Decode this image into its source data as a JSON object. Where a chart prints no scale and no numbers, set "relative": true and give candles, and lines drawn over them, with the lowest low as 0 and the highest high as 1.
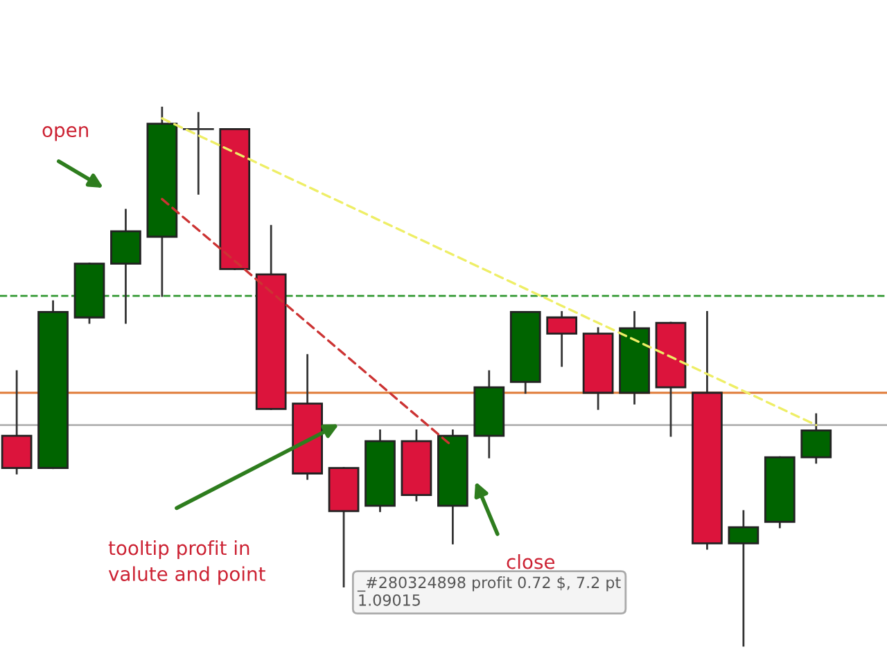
{
  "chart_data": {
    "type": "candlestick",
    "relative": true,
    "categories": [
      null,
      null,
      null,
      null,
      null,
      null,
      null,
      null,
      null,
      null,
      null,
      null,
      null,
      null,
      null,
      null,
      null,
      null,
      null,
      null,
      null,
      null,
      null
    ],
    "ohlc": [
      [
        0.39,
        0.51,
        0.32,
        0.33
      ],
      [
        0.33,
        0.64,
        0.33,
        0.62
      ],
      [
        0.61,
        0.71,
        0.6,
        0.71
      ],
      [
        0.71,
        0.81,
        0.6,
        0.77
      ],
      [
        0.76,
        1.0,
        0.65,
        0.97
      ],
      [
        0.96,
        0.99,
        0.84,
        0.96
      ],
      [
        0.96,
        0.96,
        0.7,
        0.7
      ],
      [
        0.69,
        0.78,
        0.44,
        0.44
      ],
      [
        0.45,
        0.54,
        0.31,
        0.32
      ],
      [
        0.33,
        0.33,
        0.11,
        0.25
      ],
      [
        0.26,
        0.4,
        0.25,
        0.38
      ],
      [
        0.38,
        0.4,
        0.27,
        0.28
      ],
      [
        0.26,
        0.4,
        0.19,
        0.39
      ],
      [
        0.39,
        0.51,
        0.35,
        0.48
      ],
      [
        0.49,
        0.62,
        0.47,
        0.62
      ],
      [
        0.61,
        0.62,
        0.52,
        0.58
      ],
      [
        0.58,
        0.59,
        0.44,
        0.47
      ],
      [
        0.47,
        0.62,
        0.45,
        0.59
      ],
      [
        0.6,
        0.6,
        0.39,
        0.48
      ],
      [
        0.47,
        0.62,
        0.18,
        0.19
      ],
      [
        0.19,
        0.25,
        0.0,
        0.22
      ],
      [
        0.23,
        0.35,
        0.22,
        0.35
      ],
      [
        0.35,
        0.43,
        0.34,
        0.4
      ]
    ],
    "colors": [
      "#dc143c",
      "#006400",
      "#006400",
      "#006400",
      "#006400",
      "#333333",
      "#dc143c",
      "#dc143c",
      "#dc143c",
      "#dc143c",
      "#006400",
      "#dc143c",
      "#006400",
      "#006400",
      "#006400",
      "#dc143c",
      "#dc143c",
      "#006400",
      "#dc143c",
      "#dc143c",
      "#006400",
      "#006400",
      "#006400"
    ],
    "series": [
      {
        "type": "line",
        "color": "#cc3333",
        "line_style": "dashed",
        "values": [
          null,
          null,
          null,
          null,
          0.83,
          null,
          null,
          null,
          null,
          null,
          null,
          null,
          0.37,
          null,
          null,
          null,
          null,
          null,
          null,
          null,
          null,
          null,
          null
        ]
      },
      {
        "type": "line",
        "color": "#eeee66",
        "line_style": "dashed",
        "values": [
          null,
          null,
          null,
          null,
          0.98,
          null,
          null,
          null,
          null,
          null,
          null,
          null,
          null,
          null,
          null,
          null,
          null,
          null,
          null,
          null,
          null,
          null,
          0.41
        ]
      }
    ],
    "ref_lines": [
      {
        "axis": "y",
        "value": 0.65,
        "color": "#339933",
        "line_style": "dashed"
      },
      {
        "axis": "y",
        "value": 0.47,
        "color": "#e07b39",
        "line_style": "solid"
      },
      {
        "axis": "y",
        "value": 0.41,
        "color": "#b0b0b0",
        "line_style": "solid"
      }
    ],
    "annotations": [
      "open",
      "close",
      "tooltip profit in\nvalute and point",
      "_#280324898 profit 0.72 $, 7.2 pt\n1.09015"
    ],
    "legend": false
  }
}
